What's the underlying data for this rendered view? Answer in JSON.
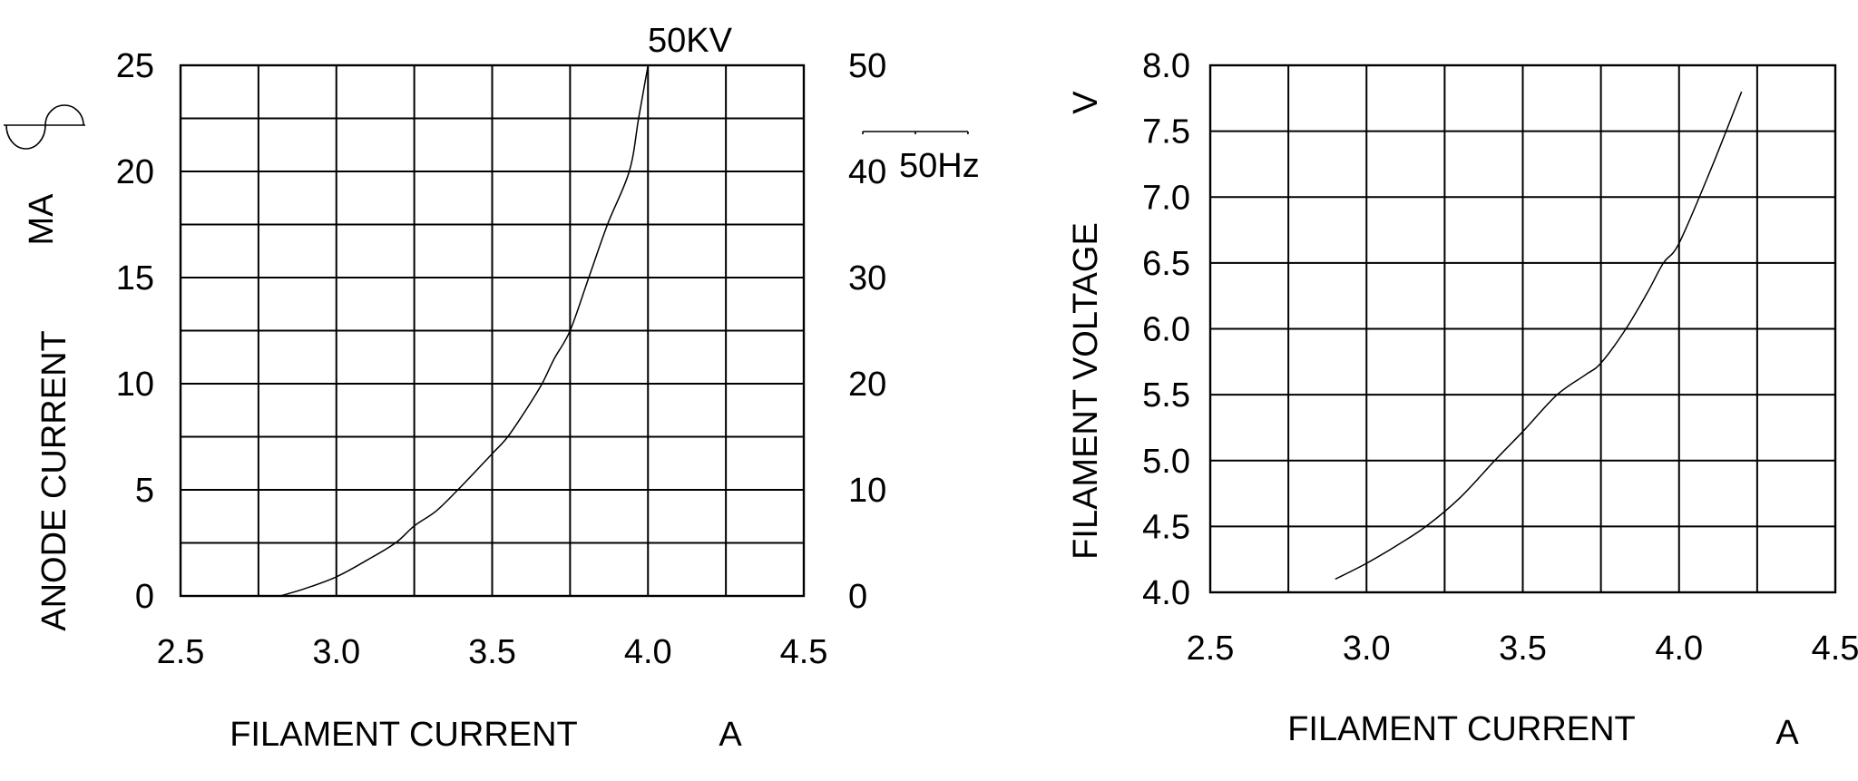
{
  "figure": {
    "background": "#ffffff",
    "line_color": "#000000",
    "text_color": "#000000"
  },
  "chart_data": [
    {
      "type": "line",
      "id": "anode-current-vs-filament-current",
      "xlabel": "FILAMENT CURRENT",
      "xunit": "A",
      "ylabel": "ANODE CURRENT",
      "yunit": "MA",
      "annotation": "50Hz",
      "icons": [
        "sine-wave-icon",
        "full-wave-rectified-icon"
      ],
      "grid": true,
      "xlim": [
        2.5,
        4.5
      ],
      "ylim": [
        0,
        25
      ],
      "ylim_right": [
        0,
        50
      ],
      "x_grid_step": 0.25,
      "y_grid_step": 2.5,
      "xticks": {
        "values": [
          2.5,
          3.0,
          3.5,
          4.0,
          4.5
        ],
        "labels": [
          "2.5",
          "3.0",
          "3.5",
          "4.0",
          "4.5"
        ]
      },
      "yticks_left": {
        "values": [
          0,
          5,
          10,
          15,
          20,
          25
        ],
        "labels": [
          "0",
          "5",
          "10",
          "15",
          "20",
          "25"
        ]
      },
      "yticks_right": {
        "values": [
          0,
          10,
          20,
          30,
          40,
          50
        ],
        "labels": [
          "0",
          "10",
          "20",
          "30",
          "40",
          "50"
        ]
      },
      "series": [
        {
          "name": "50KV",
          "points": [
            [
              2.82,
              0
            ],
            [
              2.9,
              0.35
            ],
            [
              3.0,
              0.9
            ],
            [
              3.1,
              1.7
            ],
            [
              3.19,
              2.5
            ],
            [
              3.25,
              3.3
            ],
            [
              3.32,
              4.0
            ],
            [
              3.39,
              5.0
            ],
            [
              3.5,
              6.7
            ],
            [
              3.55,
              7.5
            ],
            [
              3.61,
              8.8
            ],
            [
              3.66,
              10.0
            ],
            [
              3.7,
              11.2
            ],
            [
              3.75,
              12.5
            ],
            [
              3.81,
              15.0
            ],
            [
              3.87,
              17.5
            ],
            [
              3.94,
              20.0
            ],
            [
              3.97,
              22.5
            ],
            [
              4.0,
              25.0
            ]
          ]
        }
      ]
    },
    {
      "type": "line",
      "id": "filament-voltage-vs-filament-current",
      "xlabel": "FILAMENT CURRENT",
      "xunit": "A",
      "ylabel": "FILAMENT VOLTAGE",
      "yunit": "V",
      "grid": true,
      "xlim": [
        2.5,
        4.5
      ],
      "ylim": [
        4.0,
        8.0
      ],
      "x_grid_step": 0.25,
      "y_grid_step": 0.5,
      "xticks": {
        "values": [
          2.5,
          3.0,
          3.5,
          4.0,
          4.5
        ],
        "labels": [
          "2.5",
          "3.0",
          "3.5",
          "4.0",
          "4.5"
        ]
      },
      "yticks_left": {
        "values": [
          4.0,
          4.5,
          5.0,
          5.5,
          6.0,
          6.5,
          7.0,
          7.5,
          8.0
        ],
        "labels": [
          "4.0",
          "4.5",
          "5.0",
          "5.5",
          "6.0",
          "6.5",
          "7.0",
          "7.5",
          "8.0"
        ]
      },
      "series": [
        {
          "name": "filament voltage",
          "points": [
            [
              2.9,
              4.1
            ],
            [
              3.0,
              4.22
            ],
            [
              3.1,
              4.36
            ],
            [
              3.19,
              4.5
            ],
            [
              3.3,
              4.72
            ],
            [
              3.41,
              5.0
            ],
            [
              3.5,
              5.22
            ],
            [
              3.61,
              5.5
            ],
            [
              3.7,
              5.65
            ],
            [
              3.75,
              5.74
            ],
            [
              3.83,
              6.0
            ],
            [
              3.9,
              6.28
            ],
            [
              3.95,
              6.5
            ],
            [
              4.0,
              6.65
            ],
            [
              4.1,
              7.2
            ],
            [
              4.2,
              7.8
            ]
          ]
        }
      ]
    }
  ]
}
